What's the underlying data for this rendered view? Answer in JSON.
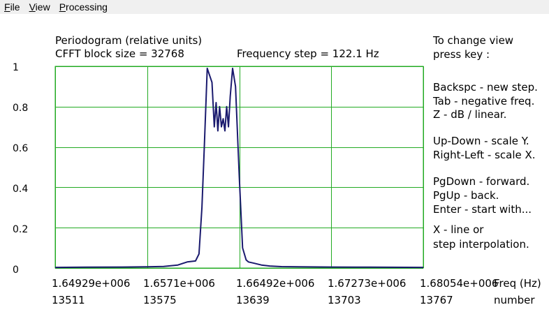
{
  "menu": {
    "items": [
      {
        "accel": "F",
        "rest": "ile"
      },
      {
        "accel": "V",
        "rest": "iew"
      },
      {
        "accel": "P",
        "rest": "rocessing"
      }
    ]
  },
  "header": {
    "title": "Periodogram  (relative units)",
    "block_size": "CFFT block size = 32768",
    "freq_step": "Frequency step =  122.1  Hz"
  },
  "help": {
    "lines": [
      "To change view",
      "press key :",
      "Backspc - new step.",
      "Tab - negative freq.",
      "Z  -   dB / linear.",
      "Up-Down  -  scale Y.",
      "Right-Left - scale X.",
      "PgDown  -  forward.",
      "PgUp   -  back.",
      "Enter  - start with...",
      "X   -     line or",
      "step interpolation."
    ]
  },
  "chart_data": {
    "type": "line",
    "title": "Periodogram  (relative units)",
    "xlabel": "Freq (Hz)",
    "ylabel": "",
    "x_tick_labels": [
      "1.64929e+006",
      "1.6571e+006",
      "1.66492e+006",
      "1.67273e+006",
      "1.68054e+006"
    ],
    "x_ticks_hz": [
      1649290,
      1657100,
      1664920,
      1672730,
      1680540
    ],
    "bin_tick_labels": [
      "13511",
      "13575",
      "13639",
      "13703",
      "13767"
    ],
    "bin_axis_label": "number",
    "y_tick_labels": [
      "1",
      "0.8",
      "0.6",
      "0.4",
      "0.2",
      "0"
    ],
    "y_ticks": [
      1,
      0.8,
      0.6,
      0.4,
      0.2,
      0
    ],
    "xlim": [
      1649290,
      1680540
    ],
    "ylim": [
      0,
      1
    ],
    "grid": true,
    "line_color": "#1a1a6e",
    "grid_color": "#22aa22",
    "series": [
      {
        "x": [
          1649290,
          1652000,
          1655000,
          1657100,
          1658500,
          1659700,
          1660500,
          1661200,
          1661500,
          1661750,
          1661950,
          1662200,
          1662600,
          1662800,
          1662950,
          1663100,
          1663250,
          1663400,
          1663550,
          1663700,
          1663850,
          1664000,
          1664150,
          1664350,
          1664600,
          1664920,
          1665200,
          1665500,
          1665700,
          1666100,
          1666800,
          1667500,
          1668500,
          1670000,
          1672730,
          1676000,
          1680540
        ],
        "y": [
          0.003,
          0.004,
          0.005,
          0.006,
          0.008,
          0.015,
          0.03,
          0.035,
          0.07,
          0.3,
          0.6,
          0.99,
          0.92,
          0.7,
          0.82,
          0.68,
          0.8,
          0.7,
          0.74,
          0.68,
          0.8,
          0.7,
          0.85,
          0.99,
          0.9,
          0.45,
          0.1,
          0.04,
          0.03,
          0.025,
          0.015,
          0.01,
          0.007,
          0.006,
          0.005,
          0.004,
          0.003
        ]
      }
    ]
  }
}
